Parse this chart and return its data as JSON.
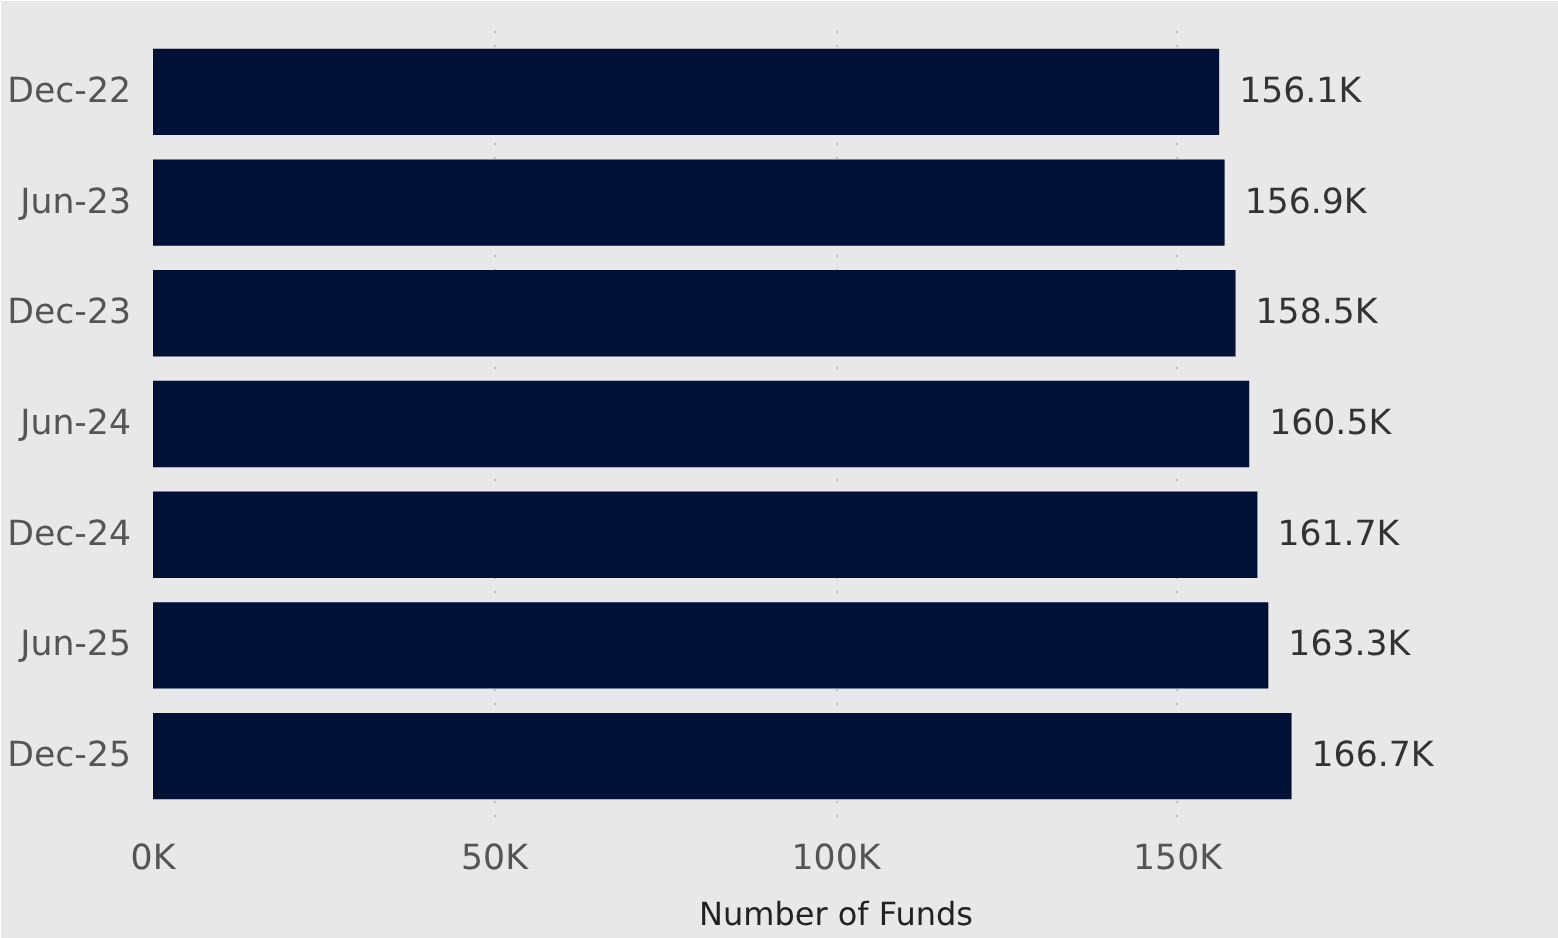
{
  "chart_data": {
    "type": "bar",
    "orientation": "horizontal",
    "xlabel": "Number of Funds",
    "categories": [
      "Dec-22",
      "Jun-23",
      "Dec-23",
      "Jun-24",
      "Dec-24",
      "Jun-25",
      "Dec-25"
    ],
    "values": [
      156100,
      156900,
      158500,
      160500,
      161700,
      163300,
      166700
    ],
    "value_labels": [
      "156.1K",
      "156.9K",
      "158.5K",
      "160.5K",
      "161.7K",
      "163.3K",
      "166.7K"
    ],
    "color": "#001137",
    "xlim": [
      0,
      200000
    ],
    "xticks": [
      {
        "value": 0,
        "label": "0K"
      },
      {
        "value": 50000,
        "label": "50K"
      },
      {
        "value": 100000,
        "label": "100K"
      },
      {
        "value": 150000,
        "label": "150K"
      }
    ],
    "grid": "x"
  }
}
